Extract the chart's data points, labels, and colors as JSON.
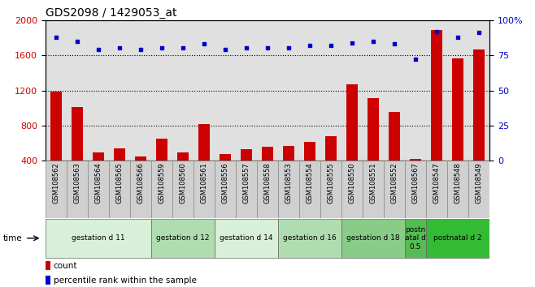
{
  "title": "GDS2098 / 1429053_at",
  "samples": [
    "GSM108562",
    "GSM108563",
    "GSM108564",
    "GSM108565",
    "GSM108566",
    "GSM108559",
    "GSM108560",
    "GSM108561",
    "GSM108556",
    "GSM108557",
    "GSM108558",
    "GSM108553",
    "GSM108554",
    "GSM108555",
    "GSM108550",
    "GSM108551",
    "GSM108552",
    "GSM108567",
    "GSM108547",
    "GSM108548",
    "GSM108549"
  ],
  "bar_values": [
    1190,
    1010,
    490,
    540,
    450,
    650,
    490,
    820,
    480,
    530,
    560,
    570,
    610,
    680,
    1270,
    1110,
    960,
    420,
    1890,
    1560,
    1670
  ],
  "dot_values": [
    88,
    85,
    79,
    80,
    79,
    80,
    80,
    83,
    79,
    80,
    80,
    80,
    82,
    82,
    84,
    85,
    83,
    72,
    92,
    88,
    91
  ],
  "groups": [
    {
      "label": "gestation d 11",
      "start": 0,
      "end": 5,
      "color": "#d8f0d8"
    },
    {
      "label": "gestation d 12",
      "start": 5,
      "end": 8,
      "color": "#b0ddb0"
    },
    {
      "label": "gestation d 14",
      "start": 8,
      "end": 11,
      "color": "#d8f0d8"
    },
    {
      "label": "gestation d 16",
      "start": 11,
      "end": 14,
      "color": "#b0ddb0"
    },
    {
      "label": "gestation d 18",
      "start": 14,
      "end": 17,
      "color": "#88cc88"
    },
    {
      "label": "postn\natal d\n0.5",
      "start": 17,
      "end": 18,
      "color": "#55bb55"
    },
    {
      "label": "postnatal d 2",
      "start": 18,
      "end": 21,
      "color": "#33bb33"
    }
  ],
  "bar_color": "#cc0000",
  "dot_color": "#0000cc",
  "ylim_left": [
    400,
    2000
  ],
  "ylim_right": [
    0,
    100
  ],
  "yticks_left": [
    400,
    800,
    1200,
    1600,
    2000
  ],
  "yticks_right": [
    0,
    25,
    50,
    75,
    100
  ],
  "xlabel": "time",
  "legend_count_color": "#cc0000",
  "legend_dot_color": "#0000cc",
  "background_color": "#ffffff",
  "plot_bg_color": "#e0e0e0",
  "xtick_bg_color": "#d0d0d0",
  "grid_color": "#000000",
  "title_fontsize": 10,
  "tick_fontsize": 8,
  "sample_fontsize": 6
}
